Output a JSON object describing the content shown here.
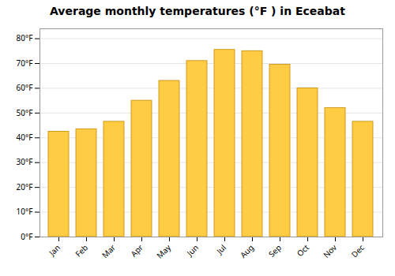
{
  "chart_data": {
    "type": "bar",
    "title": "Average monthly temperatures (°F ) in Eceabat",
    "categories": [
      "Jan",
      "Feb",
      "Mar",
      "Apr",
      "May",
      "Jun",
      "Jul",
      "Aug",
      "Sep",
      "Oct",
      "Nov",
      "Dec"
    ],
    "values": [
      42.5,
      43.5,
      46.5,
      55.0,
      63.0,
      71.0,
      75.5,
      75.0,
      69.5,
      60.0,
      52.0,
      46.5
    ],
    "color": "#FFCC44",
    "ylim": [
      0,
      84
    ],
    "yticks": [
      {
        "value": 0,
        "label": "0°F"
      },
      {
        "value": 10,
        "label": "10°F"
      },
      {
        "value": 20,
        "label": "20°F"
      },
      {
        "value": 30,
        "label": "30°F"
      },
      {
        "value": 40,
        "label": "40°F"
      },
      {
        "value": 50,
        "label": "50°F"
      },
      {
        "value": 60,
        "label": "60°F"
      },
      {
        "value": 70,
        "label": "70°F"
      },
      {
        "value": 80,
        "label": "80°F"
      }
    ],
    "grid": true
  }
}
